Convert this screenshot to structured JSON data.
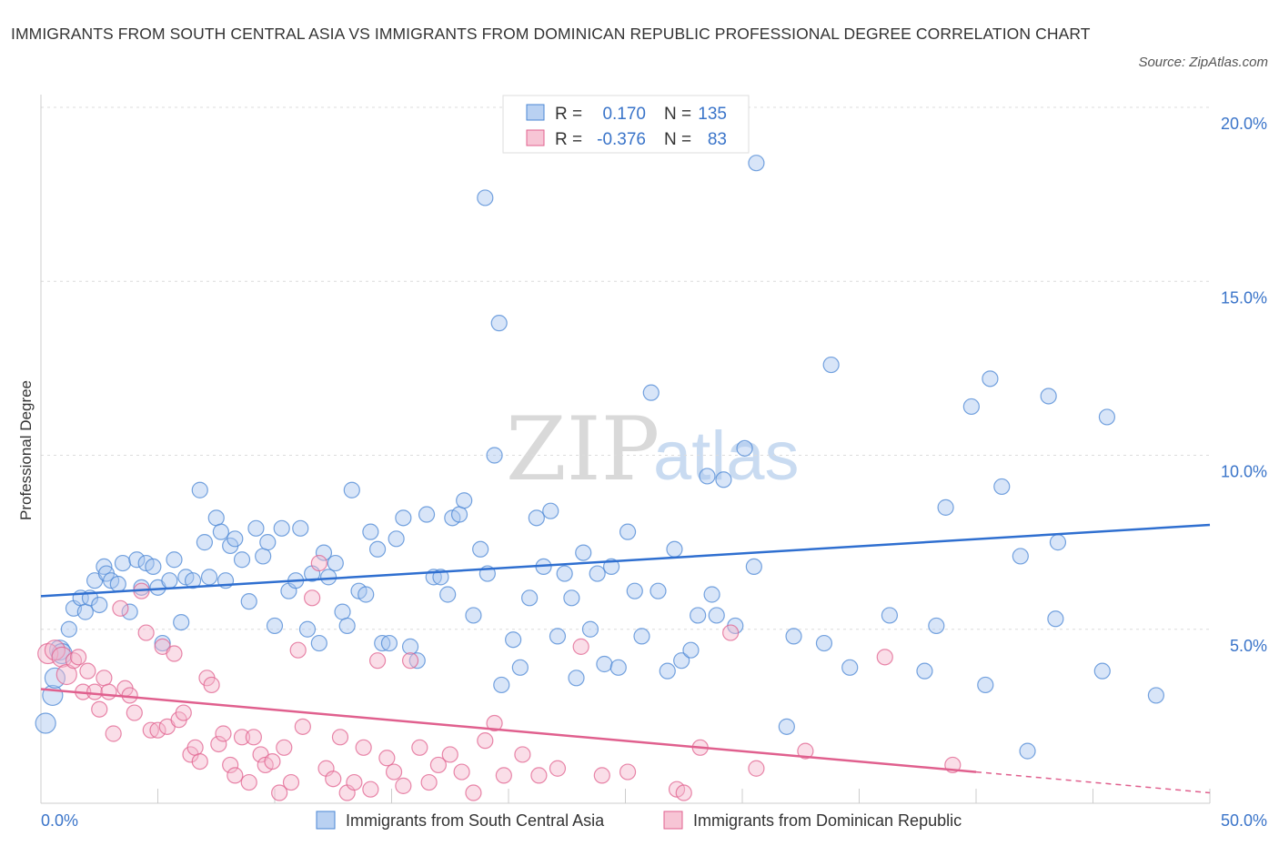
{
  "title": "IMMIGRANTS FROM SOUTH CENTRAL ASIA VS IMMIGRANTS FROM DOMINICAN REPUBLIC PROFESSIONAL DEGREE CORRELATION CHART",
  "source": "Source: ZipAtlas.com",
  "watermark": {
    "part1": "ZIP",
    "part2": "atlas"
  },
  "colors": {
    "blue": "#4a86d4",
    "blue_fill": "#a9c6ef",
    "pink": "#e0608e",
    "pink_fill": "#f4b6cb",
    "tick": "#3a74c9"
  },
  "legend": {
    "rows": [
      {
        "r_label": "R =",
        "r_value": "0.170",
        "n_label": "N =",
        "n_value": "135"
      },
      {
        "r_label": "R =",
        "r_value": "-0.376",
        "n_label": "N =",
        "n_value": "83"
      }
    ]
  },
  "chart_data": {
    "type": "scatter",
    "title": "IMMIGRANTS FROM SOUTH CENTRAL ASIA VS IMMIGRANTS FROM DOMINICAN REPUBLIC PROFESSIONAL DEGREE CORRELATION CHART",
    "ylabel": "Professional Degree",
    "xlabel": "",
    "xlim": [
      0,
      50
    ],
    "ylim": [
      0,
      20
    ],
    "x_tick_labels": [
      "0.0%",
      "50.0%"
    ],
    "y_ticks": [
      {
        "value": 5,
        "label": "5.0%"
      },
      {
        "value": 10,
        "label": "10.0%"
      },
      {
        "value": 15,
        "label": "15.0%"
      },
      {
        "value": 20,
        "label": "20.0%"
      }
    ],
    "grid": true,
    "series": [
      {
        "name": "Immigrants from South Central Asia",
        "color": "#4a86d4",
        "R": 0.17,
        "N": 135,
        "trend": {
          "x": [
            0,
            50
          ],
          "y": [
            5.95,
            8.0
          ]
        },
        "points": [
          [
            0.2,
            2.3
          ],
          [
            0.5,
            3.1
          ],
          [
            0.6,
            3.6
          ],
          [
            0.8,
            4.4
          ],
          [
            0.9,
            4.3
          ],
          [
            1.2,
            5.0
          ],
          [
            1.4,
            5.6
          ],
          [
            1.7,
            5.9
          ],
          [
            1.9,
            5.5
          ],
          [
            2.1,
            5.9
          ],
          [
            2.3,
            6.4
          ],
          [
            2.5,
            5.7
          ],
          [
            2.7,
            6.8
          ],
          [
            2.8,
            6.6
          ],
          [
            3.0,
            6.4
          ],
          [
            3.3,
            6.3
          ],
          [
            3.5,
            6.9
          ],
          [
            3.8,
            5.5
          ],
          [
            4.1,
            7.0
          ],
          [
            4.3,
            6.2
          ],
          [
            4.5,
            6.9
          ],
          [
            4.8,
            6.8
          ],
          [
            5.0,
            6.2
          ],
          [
            5.2,
            4.6
          ],
          [
            5.5,
            6.4
          ],
          [
            5.7,
            7.0
          ],
          [
            6.0,
            5.2
          ],
          [
            6.2,
            6.5
          ],
          [
            6.5,
            6.4
          ],
          [
            6.8,
            9.0
          ],
          [
            7.0,
            7.5
          ],
          [
            7.2,
            6.5
          ],
          [
            7.5,
            8.2
          ],
          [
            7.7,
            7.8
          ],
          [
            7.9,
            6.4
          ],
          [
            8.1,
            7.4
          ],
          [
            8.3,
            7.6
          ],
          [
            8.6,
            7.0
          ],
          [
            8.9,
            5.8
          ],
          [
            9.2,
            7.9
          ],
          [
            9.5,
            7.1
          ],
          [
            9.7,
            7.5
          ],
          [
            10.0,
            5.1
          ],
          [
            10.3,
            7.9
          ],
          [
            10.6,
            6.1
          ],
          [
            10.9,
            6.4
          ],
          [
            11.1,
            7.9
          ],
          [
            11.4,
            5.0
          ],
          [
            11.6,
            6.6
          ],
          [
            11.9,
            4.6
          ],
          [
            12.1,
            7.2
          ],
          [
            12.3,
            6.5
          ],
          [
            12.6,
            6.9
          ],
          [
            12.9,
            5.5
          ],
          [
            13.1,
            5.1
          ],
          [
            13.3,
            9.0
          ],
          [
            13.6,
            6.1
          ],
          [
            13.9,
            6.0
          ],
          [
            14.1,
            7.8
          ],
          [
            14.4,
            7.3
          ],
          [
            14.6,
            4.6
          ],
          [
            14.9,
            4.6
          ],
          [
            15.2,
            7.6
          ],
          [
            15.5,
            8.2
          ],
          [
            15.8,
            4.5
          ],
          [
            16.1,
            4.1
          ],
          [
            16.5,
            8.3
          ],
          [
            16.8,
            6.5
          ],
          [
            17.1,
            6.5
          ],
          [
            17.4,
            6.0
          ],
          [
            17.6,
            8.2
          ],
          [
            17.9,
            8.3
          ],
          [
            18.1,
            8.7
          ],
          [
            18.5,
            5.4
          ],
          [
            18.8,
            7.3
          ],
          [
            19.1,
            6.6
          ],
          [
            19.4,
            10.0
          ],
          [
            19.7,
            3.4
          ],
          [
            20.2,
            4.7
          ],
          [
            20.5,
            3.9
          ],
          [
            20.9,
            5.9
          ],
          [
            21.2,
            8.2
          ],
          [
            21.5,
            6.8
          ],
          [
            21.8,
            8.4
          ],
          [
            22.1,
            4.8
          ],
          [
            22.4,
            6.6
          ],
          [
            22.7,
            5.9
          ],
          [
            22.9,
            3.6
          ],
          [
            23.2,
            7.2
          ],
          [
            23.5,
            5.0
          ],
          [
            23.8,
            6.6
          ],
          [
            24.1,
            4.0
          ],
          [
            24.4,
            6.8
          ],
          [
            24.7,
            3.9
          ],
          [
            25.1,
            7.8
          ],
          [
            25.4,
            6.1
          ],
          [
            25.7,
            4.8
          ],
          [
            26.1,
            11.8
          ],
          [
            26.4,
            6.1
          ],
          [
            26.8,
            3.8
          ],
          [
            27.1,
            7.3
          ],
          [
            27.4,
            4.1
          ],
          [
            27.8,
            4.4
          ],
          [
            28.1,
            5.4
          ],
          [
            28.5,
            9.4
          ],
          [
            28.7,
            6.0
          ],
          [
            28.9,
            5.4
          ],
          [
            29.2,
            9.3
          ],
          [
            29.7,
            5.1
          ],
          [
            30.1,
            10.2
          ],
          [
            30.5,
            6.8
          ],
          [
            31.9,
            2.2
          ],
          [
            32.2,
            4.8
          ],
          [
            33.5,
            4.6
          ],
          [
            33.8,
            12.6
          ],
          [
            34.6,
            3.9
          ],
          [
            36.3,
            5.4
          ],
          [
            37.8,
            3.8
          ],
          [
            38.3,
            5.1
          ],
          [
            38.7,
            8.5
          ],
          [
            39.8,
            11.4
          ],
          [
            40.4,
            3.4
          ],
          [
            40.6,
            12.2
          ],
          [
            41.1,
            9.1
          ],
          [
            41.9,
            7.1
          ],
          [
            42.2,
            1.5
          ],
          [
            43.1,
            11.7
          ],
          [
            43.5,
            7.5
          ],
          [
            43.4,
            5.3
          ],
          [
            45.4,
            3.8
          ],
          [
            45.6,
            11.1
          ],
          [
            47.7,
            3.1
          ],
          [
            19.6,
            13.8
          ],
          [
            19.0,
            17.4
          ],
          [
            30.6,
            18.4
          ]
        ]
      },
      {
        "name": "Immigrants from Dominican Republic",
        "color": "#e0608e",
        "R": -0.376,
        "N": 83,
        "trend": {
          "x": [
            0,
            40
          ],
          "y": [
            3.28,
            0.9
          ]
        },
        "trend_dashed": {
          "x": [
            40,
            50
          ],
          "y": [
            0.9,
            0.3
          ]
        },
        "points": [
          [
            0.3,
            4.3
          ],
          [
            0.6,
            4.4
          ],
          [
            0.9,
            4.2
          ],
          [
            1.1,
            3.7
          ],
          [
            1.4,
            4.1
          ],
          [
            1.6,
            4.2
          ],
          [
            1.8,
            3.2
          ],
          [
            2.0,
            3.8
          ],
          [
            2.3,
            3.2
          ],
          [
            2.5,
            2.7
          ],
          [
            2.7,
            3.6
          ],
          [
            2.9,
            3.2
          ],
          [
            3.1,
            2.0
          ],
          [
            3.4,
            5.6
          ],
          [
            3.6,
            3.3
          ],
          [
            3.8,
            3.1
          ],
          [
            4.0,
            2.6
          ],
          [
            4.3,
            6.1
          ],
          [
            4.5,
            4.9
          ],
          [
            4.7,
            2.1
          ],
          [
            5.0,
            2.1
          ],
          [
            5.2,
            4.5
          ],
          [
            5.4,
            2.2
          ],
          [
            5.7,
            4.3
          ],
          [
            5.9,
            2.4
          ],
          [
            6.1,
            2.6
          ],
          [
            6.4,
            1.4
          ],
          [
            6.6,
            1.6
          ],
          [
            6.8,
            1.2
          ],
          [
            7.1,
            3.6
          ],
          [
            7.3,
            3.4
          ],
          [
            7.6,
            1.7
          ],
          [
            7.8,
            2.0
          ],
          [
            8.1,
            1.1
          ],
          [
            8.3,
            0.8
          ],
          [
            8.6,
            1.9
          ],
          [
            8.9,
            0.6
          ],
          [
            9.1,
            1.9
          ],
          [
            9.4,
            1.4
          ],
          [
            9.6,
            1.1
          ],
          [
            9.9,
            1.2
          ],
          [
            10.2,
            0.3
          ],
          [
            10.4,
            1.6
          ],
          [
            10.7,
            0.6
          ],
          [
            11.0,
            4.4
          ],
          [
            11.2,
            2.2
          ],
          [
            11.6,
            5.9
          ],
          [
            11.9,
            6.9
          ],
          [
            12.2,
            1.0
          ],
          [
            12.5,
            0.7
          ],
          [
            12.8,
            1.9
          ],
          [
            13.1,
            0.3
          ],
          [
            13.4,
            0.6
          ],
          [
            13.8,
            1.6
          ],
          [
            14.1,
            0.4
          ],
          [
            14.4,
            4.1
          ],
          [
            14.8,
            1.3
          ],
          [
            15.1,
            0.9
          ],
          [
            15.5,
            0.5
          ],
          [
            15.8,
            4.1
          ],
          [
            16.2,
            1.6
          ],
          [
            16.6,
            0.6
          ],
          [
            17.0,
            1.1
          ],
          [
            17.5,
            1.4
          ],
          [
            18.0,
            0.9
          ],
          [
            18.5,
            0.3
          ],
          [
            19.0,
            1.8
          ],
          [
            19.4,
            2.3
          ],
          [
            19.8,
            0.8
          ],
          [
            20.6,
            1.4
          ],
          [
            21.3,
            0.8
          ],
          [
            22.1,
            1.0
          ],
          [
            23.1,
            4.5
          ],
          [
            24.0,
            0.8
          ],
          [
            25.1,
            0.9
          ],
          [
            27.2,
            0.4
          ],
          [
            27.5,
            0.3
          ],
          [
            28.2,
            1.6
          ],
          [
            29.5,
            4.9
          ],
          [
            30.6,
            1.0
          ],
          [
            32.7,
            1.5
          ],
          [
            36.1,
            4.2
          ],
          [
            39.0,
            1.1
          ]
        ]
      }
    ],
    "watermark": "ZIPatlas"
  }
}
